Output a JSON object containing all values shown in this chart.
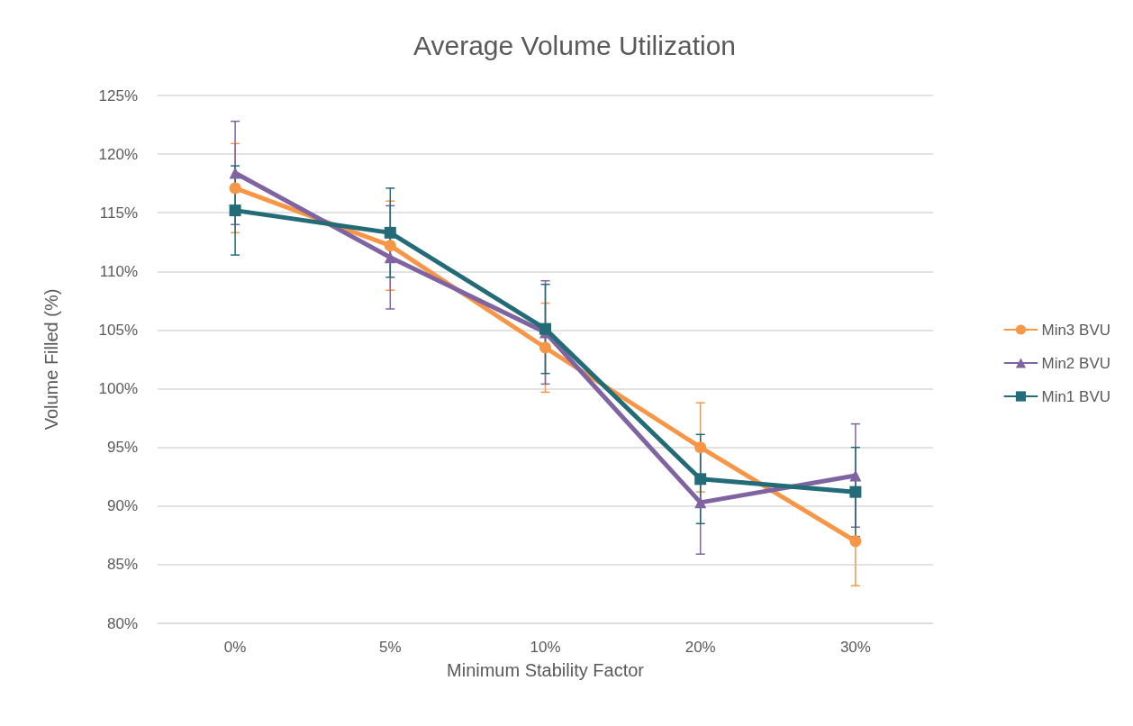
{
  "chart_data": {
    "type": "line",
    "title": "Average Volume Utilization",
    "xlabel": "Minimum Stability Factor",
    "ylabel": "Volume Filled (%)",
    "categories": [
      "0%",
      "5%",
      "10%",
      "20%",
      "30%"
    ],
    "series": [
      {
        "name": "Min3 BVU",
        "color": "#f79646",
        "marker": "circle",
        "values": [
          117.1,
          112.2,
          103.5,
          95.0,
          87.0
        ],
        "errors": [
          3.8,
          3.8,
          3.8,
          3.8,
          3.8
        ]
      },
      {
        "name": "Min2 BVU",
        "color": "#8064a2",
        "marker": "triangle",
        "values": [
          118.4,
          111.2,
          104.8,
          90.3,
          92.6
        ],
        "errors": [
          4.4,
          4.4,
          4.4,
          4.4,
          4.4
        ]
      },
      {
        "name": "Min1 BVU",
        "color": "#236b77",
        "marker": "square",
        "values": [
          115.2,
          113.3,
          105.1,
          92.3,
          91.2
        ],
        "errors": [
          3.8,
          3.8,
          3.8,
          3.8,
          3.8
        ]
      }
    ],
    "ylim": [
      80,
      125
    ],
    "yticks": [
      {
        "value": 80,
        "label": "80%"
      },
      {
        "value": 85,
        "label": "85%"
      },
      {
        "value": 90,
        "label": "90%"
      },
      {
        "value": 95,
        "label": "95%"
      },
      {
        "value": 100,
        "label": "100%"
      },
      {
        "value": 105,
        "label": "105%"
      },
      {
        "value": 110,
        "label": "110%"
      },
      {
        "value": 115,
        "label": "115%"
      },
      {
        "value": 120,
        "label": "120%"
      },
      {
        "value": 125,
        "label": "125%"
      }
    ],
    "grid": "y",
    "legend": "right",
    "line_style": "solid"
  }
}
